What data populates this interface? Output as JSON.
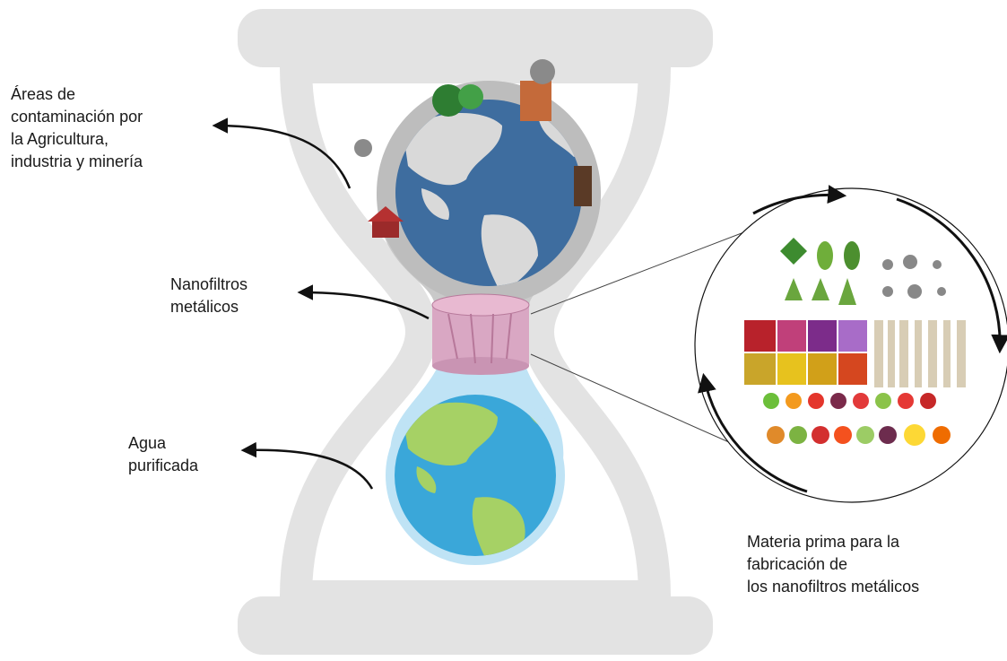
{
  "labels": [
    {
      "lines": [
        "Áreas de",
        "contaminación por",
        "la Agricultura,",
        "industria y minería"
      ]
    },
    {
      "lines": [
        "Nanofiltros",
        "metálicos"
      ]
    },
    {
      "lines": [
        "Agua",
        "purificada"
      ]
    },
    {
      "lines": [
        "Materia prima para la",
        "fabricación de",
        "los nanofiltros metálicos"
      ]
    }
  ]
}
